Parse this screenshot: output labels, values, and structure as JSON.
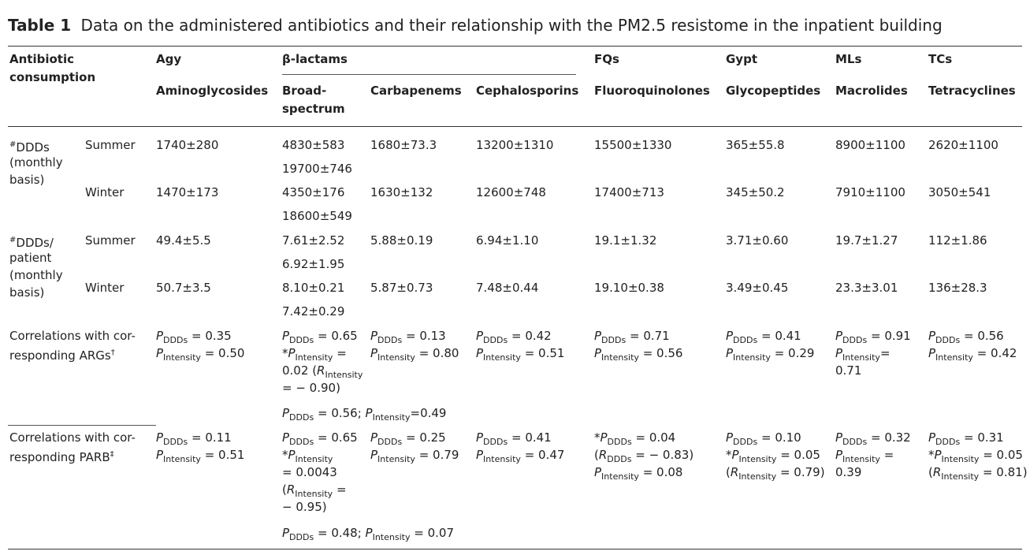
{
  "caption": {
    "label": "Table 1",
    "text": "Data on the administered antibiotics and their relationship with the PM2.5 resistome in the inpatient building"
  },
  "header": {
    "col0": [
      "Antibiotic",
      "consumption"
    ],
    "abbr": {
      "agy": "Agy",
      "bl": "β-lactams",
      "fq": "FQs",
      "gy": "Gypt",
      "ml": "MLs",
      "tc": "TCs"
    },
    "names": {
      "agy": "Aminoglycosides",
      "broad": [
        "Broad-",
        "spectrum"
      ],
      "carb": "Carbapenems",
      "ceph": "Cephalosporins",
      "fq": "Fluoroquinolones",
      "gy": "Glycopeptides",
      "ml": "Macrolides",
      "tc": "Tetracyclines"
    }
  },
  "rows": {
    "ddd": {
      "label": [
        "DDDs",
        "(monthly",
        "basis)"
      ],
      "mark": "#",
      "summer": {
        "season": "Summer",
        "agy": "1740±280",
        "broad": [
          "4830±583",
          "19700±746"
        ],
        "carb": "1680±73.3",
        "ceph": "13200±1310",
        "fq": "15500±1330",
        "gy": "365±55.8",
        "ml": "8900±1100",
        "tc": "2620±1100"
      },
      "winter": {
        "season": "Winter",
        "agy": "1470±173",
        "broad": [
          "4350±176",
          "18600±549"
        ],
        "carb": "1630±132",
        "ceph": "12600±748",
        "fq": "17400±713",
        "gy": "345±50.2",
        "ml": "7910±1100",
        "tc": "3050±541"
      }
    },
    "dddp": {
      "label": [
        "DDDs/",
        "patient",
        "(monthly",
        "basis)"
      ],
      "mark": "#",
      "summer": {
        "season": "Summer",
        "agy": "49.4±5.5",
        "broad": [
          "7.61±2.52",
          "6.92±1.95"
        ],
        "carb": "5.88±0.19",
        "ceph": "6.94±1.10",
        "fq": "19.1±1.32",
        "gy": "3.71±0.60",
        "ml": "19.7±1.27",
        "tc": "112±1.86"
      },
      "winter": {
        "season": "Winter",
        "agy": "50.7±3.5",
        "broad": [
          "8.10±0.21",
          "7.42±0.29"
        ],
        "carb": "5.87±0.73",
        "ceph": "7.48±0.44",
        "fq": "19.10±0.38",
        "gy": "3.49±0.45",
        "ml": "23.3±3.01",
        "tc": "136±28.3"
      }
    },
    "args": {
      "label": [
        "Correlations with cor-",
        "responding ARGs"
      ],
      "mark": "†",
      "vals": {
        "agy_d": "0.35",
        "agy_i": "0.50",
        "broad_d": "0.65",
        "broad_i": "0.02",
        "broad_r": "− 0.90",
        "carb_d": "0.13",
        "carb_i": "0.80",
        "ceph_d": "0.42",
        "ceph_i": "0.51",
        "fq_d": "0.71",
        "fq_i": "0.56",
        "gy_d": "0.41",
        "gy_i": "0.29",
        "ml_d": "0.91",
        "ml_i": "0.71",
        "tc_d": "0.56",
        "tc_i": "0.42",
        "extra_d": "0.56",
        "extra_i": "0.49"
      }
    },
    "parb": {
      "label": [
        "Correlations with cor-",
        "responding PARB"
      ],
      "mark": "‡",
      "vals": {
        "agy_d": "0.11",
        "agy_i": "0.51",
        "broad_d": "0.65",
        "broad_i": "0.0043",
        "broad_r": "− 0.95",
        "carb_d": "0.25",
        "carb_i": "0.79",
        "ceph_d": "0.41",
        "ceph_i": "0.47",
        "fq_d": "0.04",
        "fq_r": "− 0.83",
        "fq_i": "0.08",
        "gy_d": "0.10",
        "gy_i": "0.05",
        "gy_r": "0.79",
        "ml_d": "0.32",
        "ml_i": "0.39",
        "tc_d": "0.31",
        "tc_i": "0.05",
        "tc_r": "0.81",
        "extra_d": "0.48",
        "extra_i": "0.07"
      }
    }
  },
  "symbols": {
    "P": "P",
    "R": "R",
    "ddds": "DDDs",
    "intensity": "Intensity",
    "eq": " = ",
    "star": "*",
    "semi": "; ",
    "lparen": "(",
    "rparen": ")",
    "tightEq": "="
  }
}
